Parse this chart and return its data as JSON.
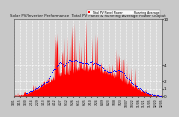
{
  "title": "Solar PV/Inverter Performance  Total PV Panel & Running Average Power Output",
  "background_color": "#c8c8c8",
  "plot_bg_color": "#d8d8d8",
  "grid_color": "#ffffff",
  "bar_color": "#ff0000",
  "avg_color": "#0000ff",
  "num_points": 365,
  "y_ticks": [
    0,
    1,
    2,
    4,
    10
  ],
  "y_max": 10,
  "y_min": 0,
  "legend_pv": "Total PV Panel Power",
  "legend_avg": "Running Average",
  "title_fontsize": 2.8,
  "tick_fontsize": 3.0,
  "legend_fontsize": 2.2
}
